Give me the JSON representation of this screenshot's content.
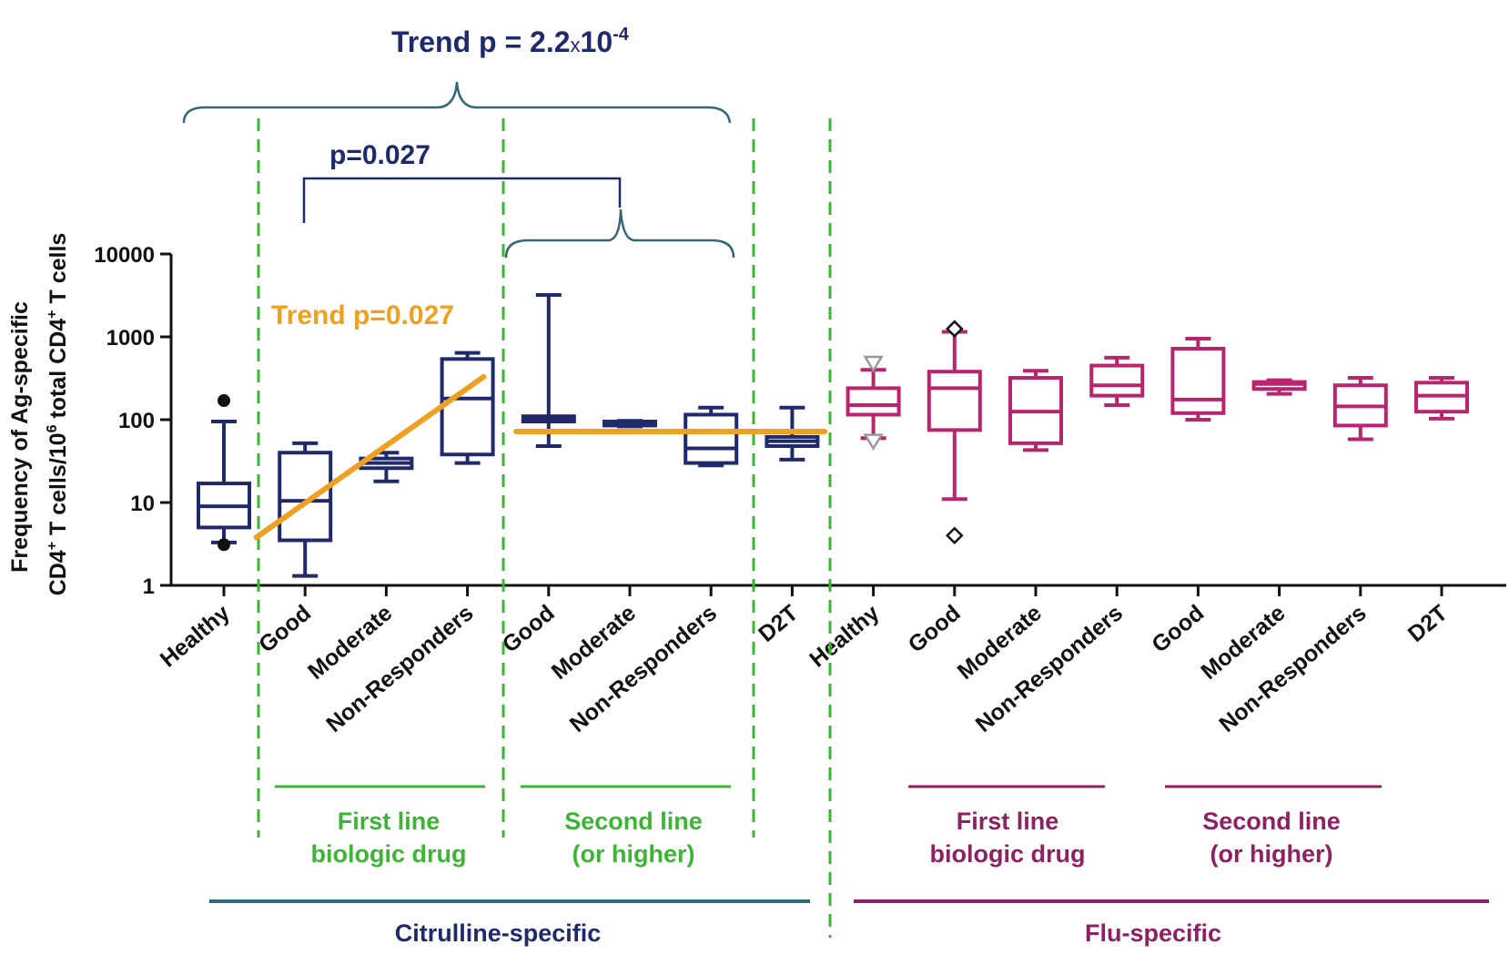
{
  "chart_data": {
    "type": "box",
    "ylabel_line1": "Frequency of Ag-specific",
    "ylabel_line2_a": "CD4",
    "ylabel_line2_sup1": "+",
    "ylabel_line2_b": " T cells/10",
    "ylabel_line2_sup2": "6",
    "ylabel_line2_c": " total CD4",
    "ylabel_line2_sup3": "+",
    "ylabel_line2_d": " T cells",
    "y_scale": "log10",
    "ylim": [
      1,
      10000
    ],
    "y_ticks": [
      {
        "value": 1,
        "label": "1"
      },
      {
        "value": 10,
        "label": "10"
      },
      {
        "value": 100,
        "label": "100"
      },
      {
        "value": 1000,
        "label": "1000"
      },
      {
        "value": 10000,
        "label": "10000"
      }
    ],
    "categories": [
      "Healthy",
      "Good",
      "Moderate",
      "Non-Responders",
      "Good",
      "Moderate",
      "Non-Responders",
      "D2T",
      "Healthy",
      "Good",
      "Moderate",
      "Non-Responders",
      "Good",
      "Moderate",
      "Non-Responders",
      "D2T"
    ],
    "series": [
      {
        "name": "Citrulline-specific",
        "color": "#1f2a6b",
        "boxes": [
          {
            "category": "Healthy",
            "min": 3.3,
            "q1": 5,
            "median": 9,
            "q3": 17,
            "max": 95,
            "outliers": [
              {
                "value": 170,
                "marker": "filled-circle"
              },
              {
                "value": 3.1,
                "marker": "filled-circle"
              }
            ]
          },
          {
            "category": "Good",
            "min": 1.3,
            "q1": 3.5,
            "median": 10.5,
            "q3": 40,
            "max": 52,
            "outliers": []
          },
          {
            "category": "Moderate",
            "min": 18,
            "q1": 26,
            "median": 30,
            "q3": 34,
            "max": 40,
            "outliers": []
          },
          {
            "category": "Non-Responders",
            "min": 30,
            "q1": 38,
            "median": 180,
            "q3": 540,
            "max": 640,
            "outliers": []
          },
          {
            "category": "Good",
            "min": 48,
            "q1": 95,
            "median": 100,
            "q3": 110,
            "max": 3200,
            "outliers": []
          },
          {
            "category": "Moderate",
            "min": 83,
            "q1": 85,
            "median": 90,
            "q3": 95,
            "max": 97,
            "outliers": []
          },
          {
            "category": "Non-Responders",
            "min": 28,
            "q1": 30,
            "median": 45,
            "q3": 115,
            "max": 140,
            "outliers": []
          },
          {
            "category": "D2T",
            "min": 33,
            "q1": 48,
            "median": 55,
            "q3": 62,
            "max": 140,
            "outliers": []
          }
        ]
      },
      {
        "name": "Flu-specific",
        "color": "#b8246e",
        "boxes": [
          {
            "category": "Healthy",
            "min": 60,
            "q1": 115,
            "median": 150,
            "q3": 240,
            "max": 400,
            "outliers": [
              {
                "value": 480,
                "marker": "open-triangle-down"
              },
              {
                "value": 55,
                "marker": "open-triangle-down"
              }
            ]
          },
          {
            "category": "Good",
            "min": 11,
            "q1": 75,
            "median": 240,
            "q3": 380,
            "max": 1150,
            "outliers": [
              {
                "value": 1250,
                "marker": "open-diamond"
              },
              {
                "value": 4,
                "marker": "open-diamond"
              }
            ]
          },
          {
            "category": "Moderate",
            "min": 43,
            "q1": 52,
            "median": 125,
            "q3": 320,
            "max": 390,
            "outliers": []
          },
          {
            "category": "Non-Responders",
            "min": 150,
            "q1": 195,
            "median": 260,
            "q3": 450,
            "max": 560,
            "outliers": []
          },
          {
            "category": "Good",
            "min": 100,
            "q1": 120,
            "median": 175,
            "q3": 720,
            "max": 950,
            "outliers": []
          },
          {
            "category": "Moderate",
            "min": 205,
            "q1": 235,
            "median": 270,
            "q3": 285,
            "max": 300,
            "outliers": []
          },
          {
            "category": "Non-Responders",
            "min": 58,
            "q1": 85,
            "median": 145,
            "q3": 260,
            "max": 320,
            "outliers": []
          },
          {
            "category": "D2T",
            "min": 103,
            "q1": 125,
            "median": 195,
            "q3": 280,
            "max": 320,
            "outliers": []
          }
        ]
      }
    ],
    "trend_lines": [
      {
        "color": "#f0a020",
        "from": {
          "category_index": 0.4,
          "value": 3.8
        },
        "to": {
          "category_index": 3.2,
          "value": 330
        }
      },
      {
        "color": "#f0a020",
        "from": {
          "category_index": 3.6,
          "value": 72
        },
        "to": {
          "category_index": 7.4,
          "value": 72
        }
      }
    ],
    "annotations": {
      "trend_top": {
        "main": "Trend p = 2.2",
        "times": "x",
        "base": "10",
        "exp": "-4",
        "color": "#1f2a6b"
      },
      "p_bracket": {
        "label": "p=0.027",
        "color": "#1f2a6b"
      },
      "trend_orange": {
        "label": "Trend p=0.027",
        "color": "#f0a020"
      }
    },
    "group_labels": [
      {
        "line1": "First line",
        "line2": "biologic drug",
        "color": "#3cb534"
      },
      {
        "line1": "Second line",
        "line2": "(or higher)",
        "color": "#3cb534"
      },
      {
        "line1": "First line",
        "line2": "biologic drug",
        "color": "#8e2063"
      },
      {
        "line1": "Second line",
        "line2": "(or higher)",
        "color": "#8e2063"
      }
    ],
    "super_groups": [
      {
        "label": "Citrulline-specific",
        "text_color": "#1f2a6b",
        "line_color": "#2c6e7a"
      },
      {
        "label": "Flu-specific",
        "text_color": "#8e2063",
        "line_color": "#8e2063"
      }
    ],
    "divider_color": "#3cb534",
    "bracket_color": "#34667a",
    "grid": false,
    "legend": "none"
  }
}
